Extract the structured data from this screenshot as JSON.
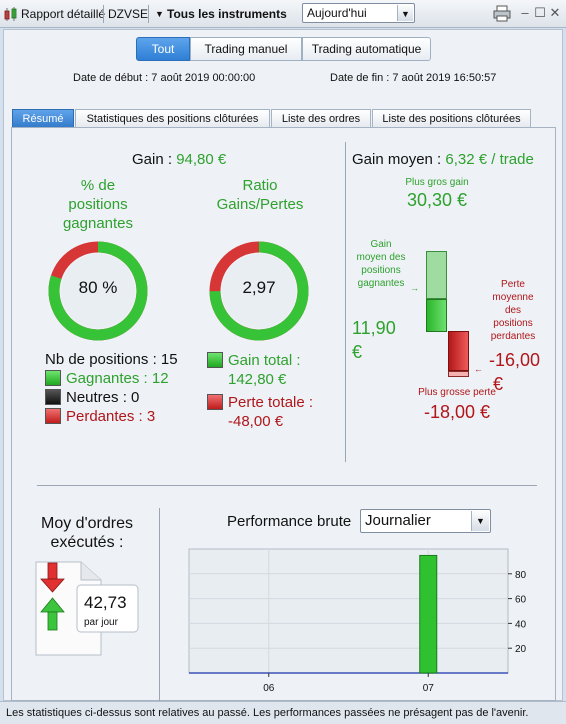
{
  "toolbar": {
    "report_label": "Rapport détaillé",
    "account": "DZVSE",
    "instrument_menu": "Tous les instruments",
    "period": "Aujourd'hui"
  },
  "filters": {
    "buttons": [
      "Tout",
      "Trading manuel",
      "Trading automatique"
    ],
    "active": "Tout",
    "start_date": "Date de début : 7 août 2019 00:00:00",
    "end_date": "Date de fin : 7 août 2019 16:50:57"
  },
  "tabs": [
    "Résumé",
    "Statistiques des positions clôturées",
    "Liste des ordres",
    "Liste des positions clôturées"
  ],
  "summary": {
    "gain_label": "Gain : ",
    "gain_value": "94,80 €",
    "win_pct_title_1": "% de",
    "win_pct_title_2": "positions",
    "win_pct_title_3": "gagnantes",
    "win_pct_value": "80 %",
    "win_pct_fraction": 0.8,
    "ratio_title_1": "Ratio",
    "ratio_title_2": "Gains/Pertes",
    "ratio_value": "2,97",
    "ratio_fraction": 0.748,
    "nb_positions": "Nb de positions : 15",
    "winners": "Gagnantes : 12",
    "neutral": "Neutres : 0",
    "losers": "Perdantes : 3",
    "total_gain_1": "Gain total :",
    "total_gain_2": "142,80 €",
    "total_loss_1": "Perte totale :",
    "total_loss_2": "-48,00 €"
  },
  "avg_gain": {
    "label": "Gain moyen : ",
    "value": "6,32 € / trade",
    "best_label": "Plus gros gain",
    "best_value": "30,30 €",
    "avg_win_label_1": "Gain",
    "avg_win_label_2": "moyen des",
    "avg_win_label_3": "positions",
    "avg_win_label_4": "gagnantes",
    "avg_win_value_1": "11,90",
    "avg_win_value_2": "€",
    "avg_loss_label_1": "Perte",
    "avg_loss_label_2": "moyenne",
    "avg_loss_label_3": "des",
    "avg_loss_label_4": "positions",
    "avg_loss_label_5": "perdantes",
    "avg_loss_value_1": "-16,00",
    "avg_loss_value_2": "€",
    "worst_label": "Plus grosse perte",
    "worst_value": "-18,00 €"
  },
  "orders": {
    "title_1": "Moy d'ordres",
    "title_2": "exécutés :",
    "value": "42,73",
    "unit": "par jour"
  },
  "performance": {
    "label": "Performance brute",
    "period": "Journalier"
  },
  "chart_data": {
    "type": "bar",
    "categories": [
      "06",
      "07"
    ],
    "values": [
      0,
      94.8
    ],
    "ylim": [
      0,
      100
    ],
    "yticks": [
      20,
      40,
      60,
      80
    ],
    "title": "",
    "xlabel": "",
    "ylabel": "",
    "grid": true,
    "bar_color": "#2fc12f"
  },
  "footer": "Les statistiques ci-dessus sont relatives au passé. Les performances passées ne présagent pas de l'avenir."
}
